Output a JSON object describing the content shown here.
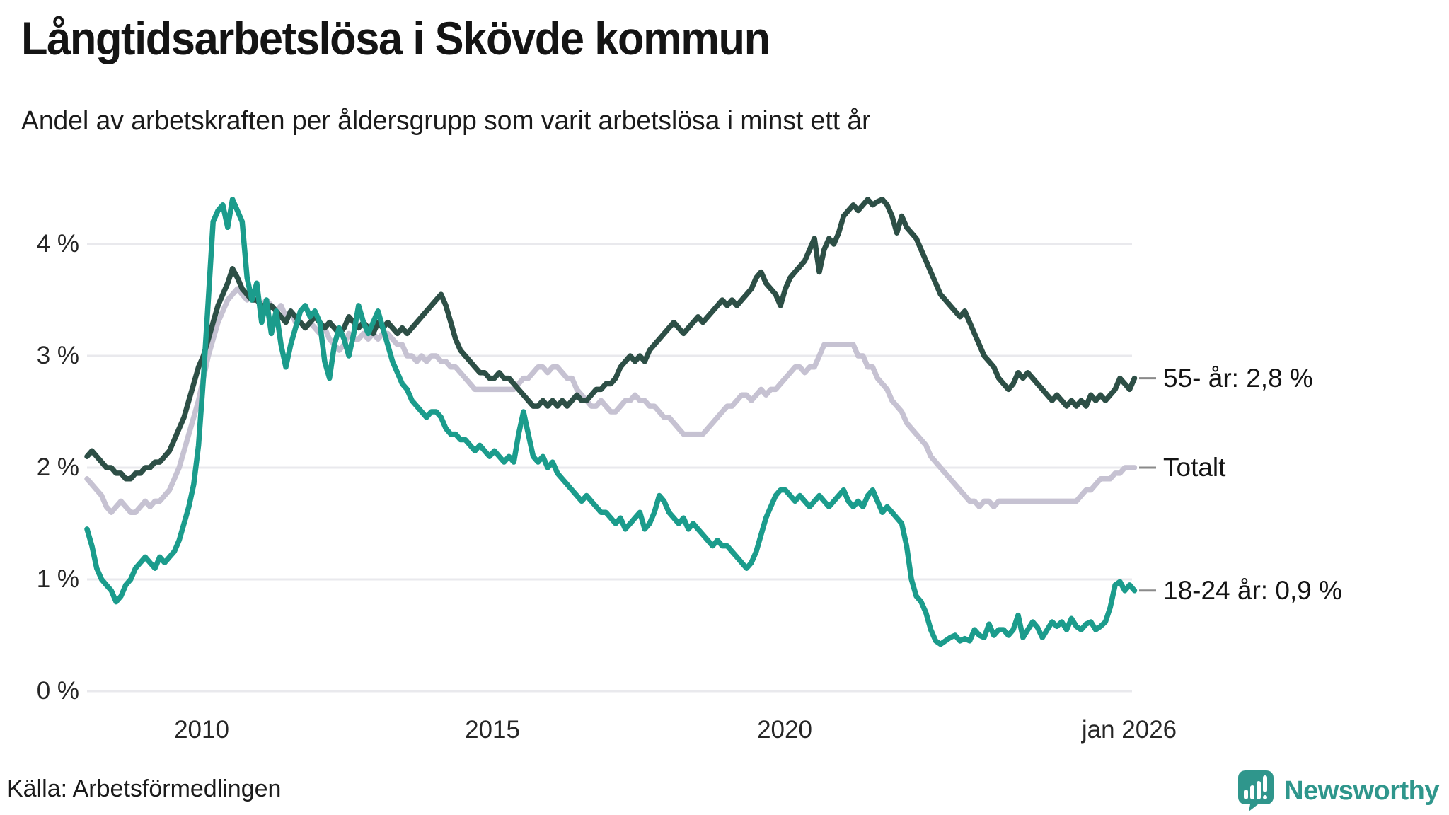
{
  "title": "Långtidsarbetslösa i Skövde kommun",
  "subtitle": "Andel av arbetskraften per åldersgrupp som varit arbetslösa i minst ett år",
  "source": "Källa: Arbetsförmedlingen",
  "branding": {
    "name": "Newsworthy",
    "logo_icon": "bar-chart-speech-bubble-icon",
    "color": "#2f968c"
  },
  "colors": {
    "grid": "#e9e9ed",
    "tick_dash": "#8a8a8a",
    "title_text": "#141414",
    "axis_text": "#262626"
  },
  "chart_data": {
    "type": "line",
    "title": "Långtidsarbetslösa i Skövde kommun",
    "subtitle": "Andel av arbetskraften per åldersgrupp som varit arbetslösa i minst ett år",
    "x_start_year": 2008,
    "x_step_months": 1,
    "x_end_label": "jan 2026",
    "xlim": [
      2008,
      2026.08
    ],
    "ylim": [
      0,
      4.55
    ],
    "grid": "horizontal",
    "legend_position": "right-end-labels",
    "y_ticks": [
      {
        "label": "0 %",
        "value": 0
      },
      {
        "label": "1 %",
        "value": 1
      },
      {
        "label": "2 %",
        "value": 2
      },
      {
        "label": "3 %",
        "value": 3
      },
      {
        "label": "4 %",
        "value": 4
      }
    ],
    "x_ticks": [
      {
        "label": "2010",
        "year": 2010
      },
      {
        "label": "2015",
        "year": 2015
      },
      {
        "label": "2020",
        "year": 2020
      },
      {
        "label": "jan 2026",
        "year": 2026
      }
    ],
    "series": [
      {
        "name": "Totalt",
        "end_label": "Totalt",
        "color": "#c6c2d2",
        "last_value": 2.0,
        "values": [
          1.9,
          1.85,
          1.8,
          1.75,
          1.65,
          1.6,
          1.65,
          1.7,
          1.65,
          1.6,
          1.6,
          1.65,
          1.7,
          1.65,
          1.7,
          1.7,
          1.75,
          1.8,
          1.9,
          2.0,
          2.15,
          2.3,
          2.45,
          2.6,
          2.8,
          3.0,
          3.15,
          3.3,
          3.4,
          3.5,
          3.55,
          3.6,
          3.55,
          3.5,
          3.55,
          3.5,
          3.45,
          3.5,
          3.45,
          3.4,
          3.45,
          3.35,
          3.4,
          3.3,
          3.3,
          3.25,
          3.3,
          3.25,
          3.2,
          3.25,
          3.15,
          3.1,
          3.05,
          3.1,
          3.2,
          3.15,
          3.15,
          3.2,
          3.15,
          3.2,
          3.15,
          3.2,
          3.2,
          3.15,
          3.1,
          3.1,
          3.0,
          3.0,
          2.95,
          3.0,
          2.95,
          3.0,
          3.0,
          2.95,
          2.95,
          2.9,
          2.9,
          2.85,
          2.8,
          2.75,
          2.7,
          2.7,
          2.7,
          2.7,
          2.7,
          2.7,
          2.7,
          2.7,
          2.7,
          2.75,
          2.8,
          2.8,
          2.85,
          2.9,
          2.9,
          2.85,
          2.9,
          2.9,
          2.85,
          2.8,
          2.8,
          2.7,
          2.65,
          2.6,
          2.55,
          2.55,
          2.6,
          2.55,
          2.5,
          2.5,
          2.55,
          2.6,
          2.6,
          2.65,
          2.6,
          2.6,
          2.55,
          2.55,
          2.5,
          2.45,
          2.45,
          2.4,
          2.35,
          2.3,
          2.3,
          2.3,
          2.3,
          2.3,
          2.35,
          2.4,
          2.45,
          2.5,
          2.55,
          2.55,
          2.6,
          2.65,
          2.65,
          2.6,
          2.65,
          2.7,
          2.65,
          2.7,
          2.7,
          2.75,
          2.8,
          2.85,
          2.9,
          2.9,
          2.85,
          2.9,
          2.9,
          3.0,
          3.1,
          3.1,
          3.1,
          3.1,
          3.1,
          3.1,
          3.1,
          3.0,
          3.0,
          2.9,
          2.9,
          2.8,
          2.75,
          2.7,
          2.6,
          2.55,
          2.5,
          2.4,
          2.35,
          2.3,
          2.25,
          2.2,
          2.1,
          2.05,
          2.0,
          1.95,
          1.9,
          1.85,
          1.8,
          1.75,
          1.7,
          1.7,
          1.65,
          1.7,
          1.7,
          1.65,
          1.7,
          1.7,
          1.7,
          1.7,
          1.7,
          1.7,
          1.7,
          1.7,
          1.7,
          1.7,
          1.7,
          1.7,
          1.7,
          1.7,
          1.7,
          1.7,
          1.7,
          1.75,
          1.8,
          1.8,
          1.85,
          1.9,
          1.9,
          1.9,
          1.95,
          1.95,
          2.0,
          2.0,
          2.0
        ]
      },
      {
        "name": "55- år",
        "end_label": "55- år: 2,8 %",
        "color": "#2d4f46",
        "last_value": 2.8,
        "values": [
          2.1,
          2.15,
          2.1,
          2.05,
          2.0,
          2.0,
          1.95,
          1.95,
          1.9,
          1.9,
          1.95,
          1.95,
          2.0,
          2.0,
          2.05,
          2.05,
          2.1,
          2.15,
          2.25,
          2.35,
          2.45,
          2.6,
          2.75,
          2.9,
          3.0,
          3.15,
          3.3,
          3.45,
          3.55,
          3.65,
          3.78,
          3.7,
          3.6,
          3.55,
          3.5,
          3.5,
          3.45,
          3.4,
          3.45,
          3.4,
          3.35,
          3.3,
          3.4,
          3.35,
          3.3,
          3.25,
          3.3,
          3.35,
          3.3,
          3.25,
          3.3,
          3.25,
          3.2,
          3.25,
          3.35,
          3.3,
          3.25,
          3.3,
          3.25,
          3.2,
          3.3,
          3.25,
          3.3,
          3.25,
          3.2,
          3.25,
          3.2,
          3.25,
          3.3,
          3.35,
          3.4,
          3.45,
          3.5,
          3.55,
          3.45,
          3.3,
          3.15,
          3.05,
          3.0,
          2.95,
          2.9,
          2.85,
          2.85,
          2.8,
          2.8,
          2.85,
          2.8,
          2.8,
          2.75,
          2.7,
          2.65,
          2.6,
          2.55,
          2.55,
          2.6,
          2.55,
          2.6,
          2.55,
          2.6,
          2.55,
          2.6,
          2.65,
          2.6,
          2.6,
          2.65,
          2.7,
          2.7,
          2.75,
          2.75,
          2.8,
          2.9,
          2.95,
          3.0,
          2.95,
          3.0,
          2.95,
          3.05,
          3.1,
          3.15,
          3.2,
          3.25,
          3.3,
          3.25,
          3.2,
          3.25,
          3.3,
          3.35,
          3.3,
          3.35,
          3.4,
          3.45,
          3.5,
          3.45,
          3.5,
          3.45,
          3.5,
          3.55,
          3.6,
          3.7,
          3.75,
          3.65,
          3.6,
          3.55,
          3.45,
          3.6,
          3.7,
          3.75,
          3.8,
          3.85,
          3.95,
          4.05,
          3.75,
          3.95,
          4.05,
          4.0,
          4.1,
          4.25,
          4.3,
          4.35,
          4.3,
          4.35,
          4.4,
          4.35,
          4.38,
          4.4,
          4.35,
          4.25,
          4.1,
          4.25,
          4.15,
          4.1,
          4.05,
          3.95,
          3.85,
          3.75,
          3.65,
          3.55,
          3.5,
          3.45,
          3.4,
          3.35,
          3.4,
          3.3,
          3.2,
          3.1,
          3.0,
          2.95,
          2.9,
          2.8,
          2.75,
          2.7,
          2.75,
          2.85,
          2.8,
          2.85,
          2.8,
          2.75,
          2.7,
          2.65,
          2.6,
          2.65,
          2.6,
          2.55,
          2.6,
          2.55,
          2.6,
          2.55,
          2.65,
          2.6,
          2.65,
          2.6,
          2.65,
          2.7,
          2.8,
          2.75,
          2.7,
          2.8
        ]
      },
      {
        "name": "18-24 år",
        "end_label": "18-24 år: 0,9 %",
        "color": "#1b9c8c",
        "last_value": 0.9,
        "values": [
          1.45,
          1.3,
          1.1,
          1.0,
          0.95,
          0.9,
          0.8,
          0.85,
          0.95,
          1.0,
          1.1,
          1.15,
          1.2,
          1.15,
          1.1,
          1.2,
          1.15,
          1.2,
          1.25,
          1.35,
          1.5,
          1.65,
          1.85,
          2.2,
          2.8,
          3.5,
          4.2,
          4.3,
          4.35,
          4.15,
          4.4,
          4.3,
          4.2,
          3.7,
          3.5,
          3.65,
          3.3,
          3.5,
          3.2,
          3.4,
          3.1,
          2.9,
          3.1,
          3.25,
          3.4,
          3.45,
          3.35,
          3.4,
          3.3,
          2.95,
          2.8,
          3.1,
          3.25,
          3.15,
          3.0,
          3.2,
          3.45,
          3.3,
          3.2,
          3.3,
          3.4,
          3.25,
          3.1,
          2.95,
          2.85,
          2.75,
          2.7,
          2.6,
          2.55,
          2.5,
          2.45,
          2.5,
          2.5,
          2.45,
          2.35,
          2.3,
          2.3,
          2.25,
          2.25,
          2.2,
          2.15,
          2.2,
          2.15,
          2.1,
          2.15,
          2.1,
          2.05,
          2.1,
          2.05,
          2.3,
          2.5,
          2.3,
          2.1,
          2.05,
          2.1,
          2.0,
          2.05,
          1.95,
          1.9,
          1.85,
          1.8,
          1.75,
          1.7,
          1.75,
          1.7,
          1.65,
          1.6,
          1.6,
          1.55,
          1.5,
          1.55,
          1.45,
          1.5,
          1.55,
          1.6,
          1.45,
          1.5,
          1.6,
          1.75,
          1.7,
          1.6,
          1.55,
          1.5,
          1.55,
          1.45,
          1.5,
          1.45,
          1.4,
          1.35,
          1.3,
          1.35,
          1.3,
          1.3,
          1.25,
          1.2,
          1.15,
          1.1,
          1.15,
          1.25,
          1.4,
          1.55,
          1.65,
          1.75,
          1.8,
          1.8,
          1.75,
          1.7,
          1.75,
          1.7,
          1.65,
          1.7,
          1.75,
          1.7,
          1.65,
          1.7,
          1.75,
          1.8,
          1.7,
          1.65,
          1.7,
          1.65,
          1.75,
          1.8,
          1.7,
          1.6,
          1.65,
          1.6,
          1.55,
          1.5,
          1.3,
          1.0,
          0.85,
          0.8,
          0.7,
          0.55,
          0.45,
          0.42,
          0.45,
          0.48,
          0.5,
          0.45,
          0.47,
          0.45,
          0.55,
          0.5,
          0.48,
          0.6,
          0.5,
          0.55,
          0.55,
          0.5,
          0.55,
          0.68,
          0.48,
          0.55,
          0.62,
          0.57,
          0.48,
          0.55,
          0.62,
          0.58,
          0.62,
          0.55,
          0.65,
          0.58,
          0.55,
          0.6,
          0.62,
          0.55,
          0.58,
          0.62,
          0.75,
          0.95,
          0.98,
          0.9,
          0.95,
          0.9
        ]
      }
    ]
  }
}
